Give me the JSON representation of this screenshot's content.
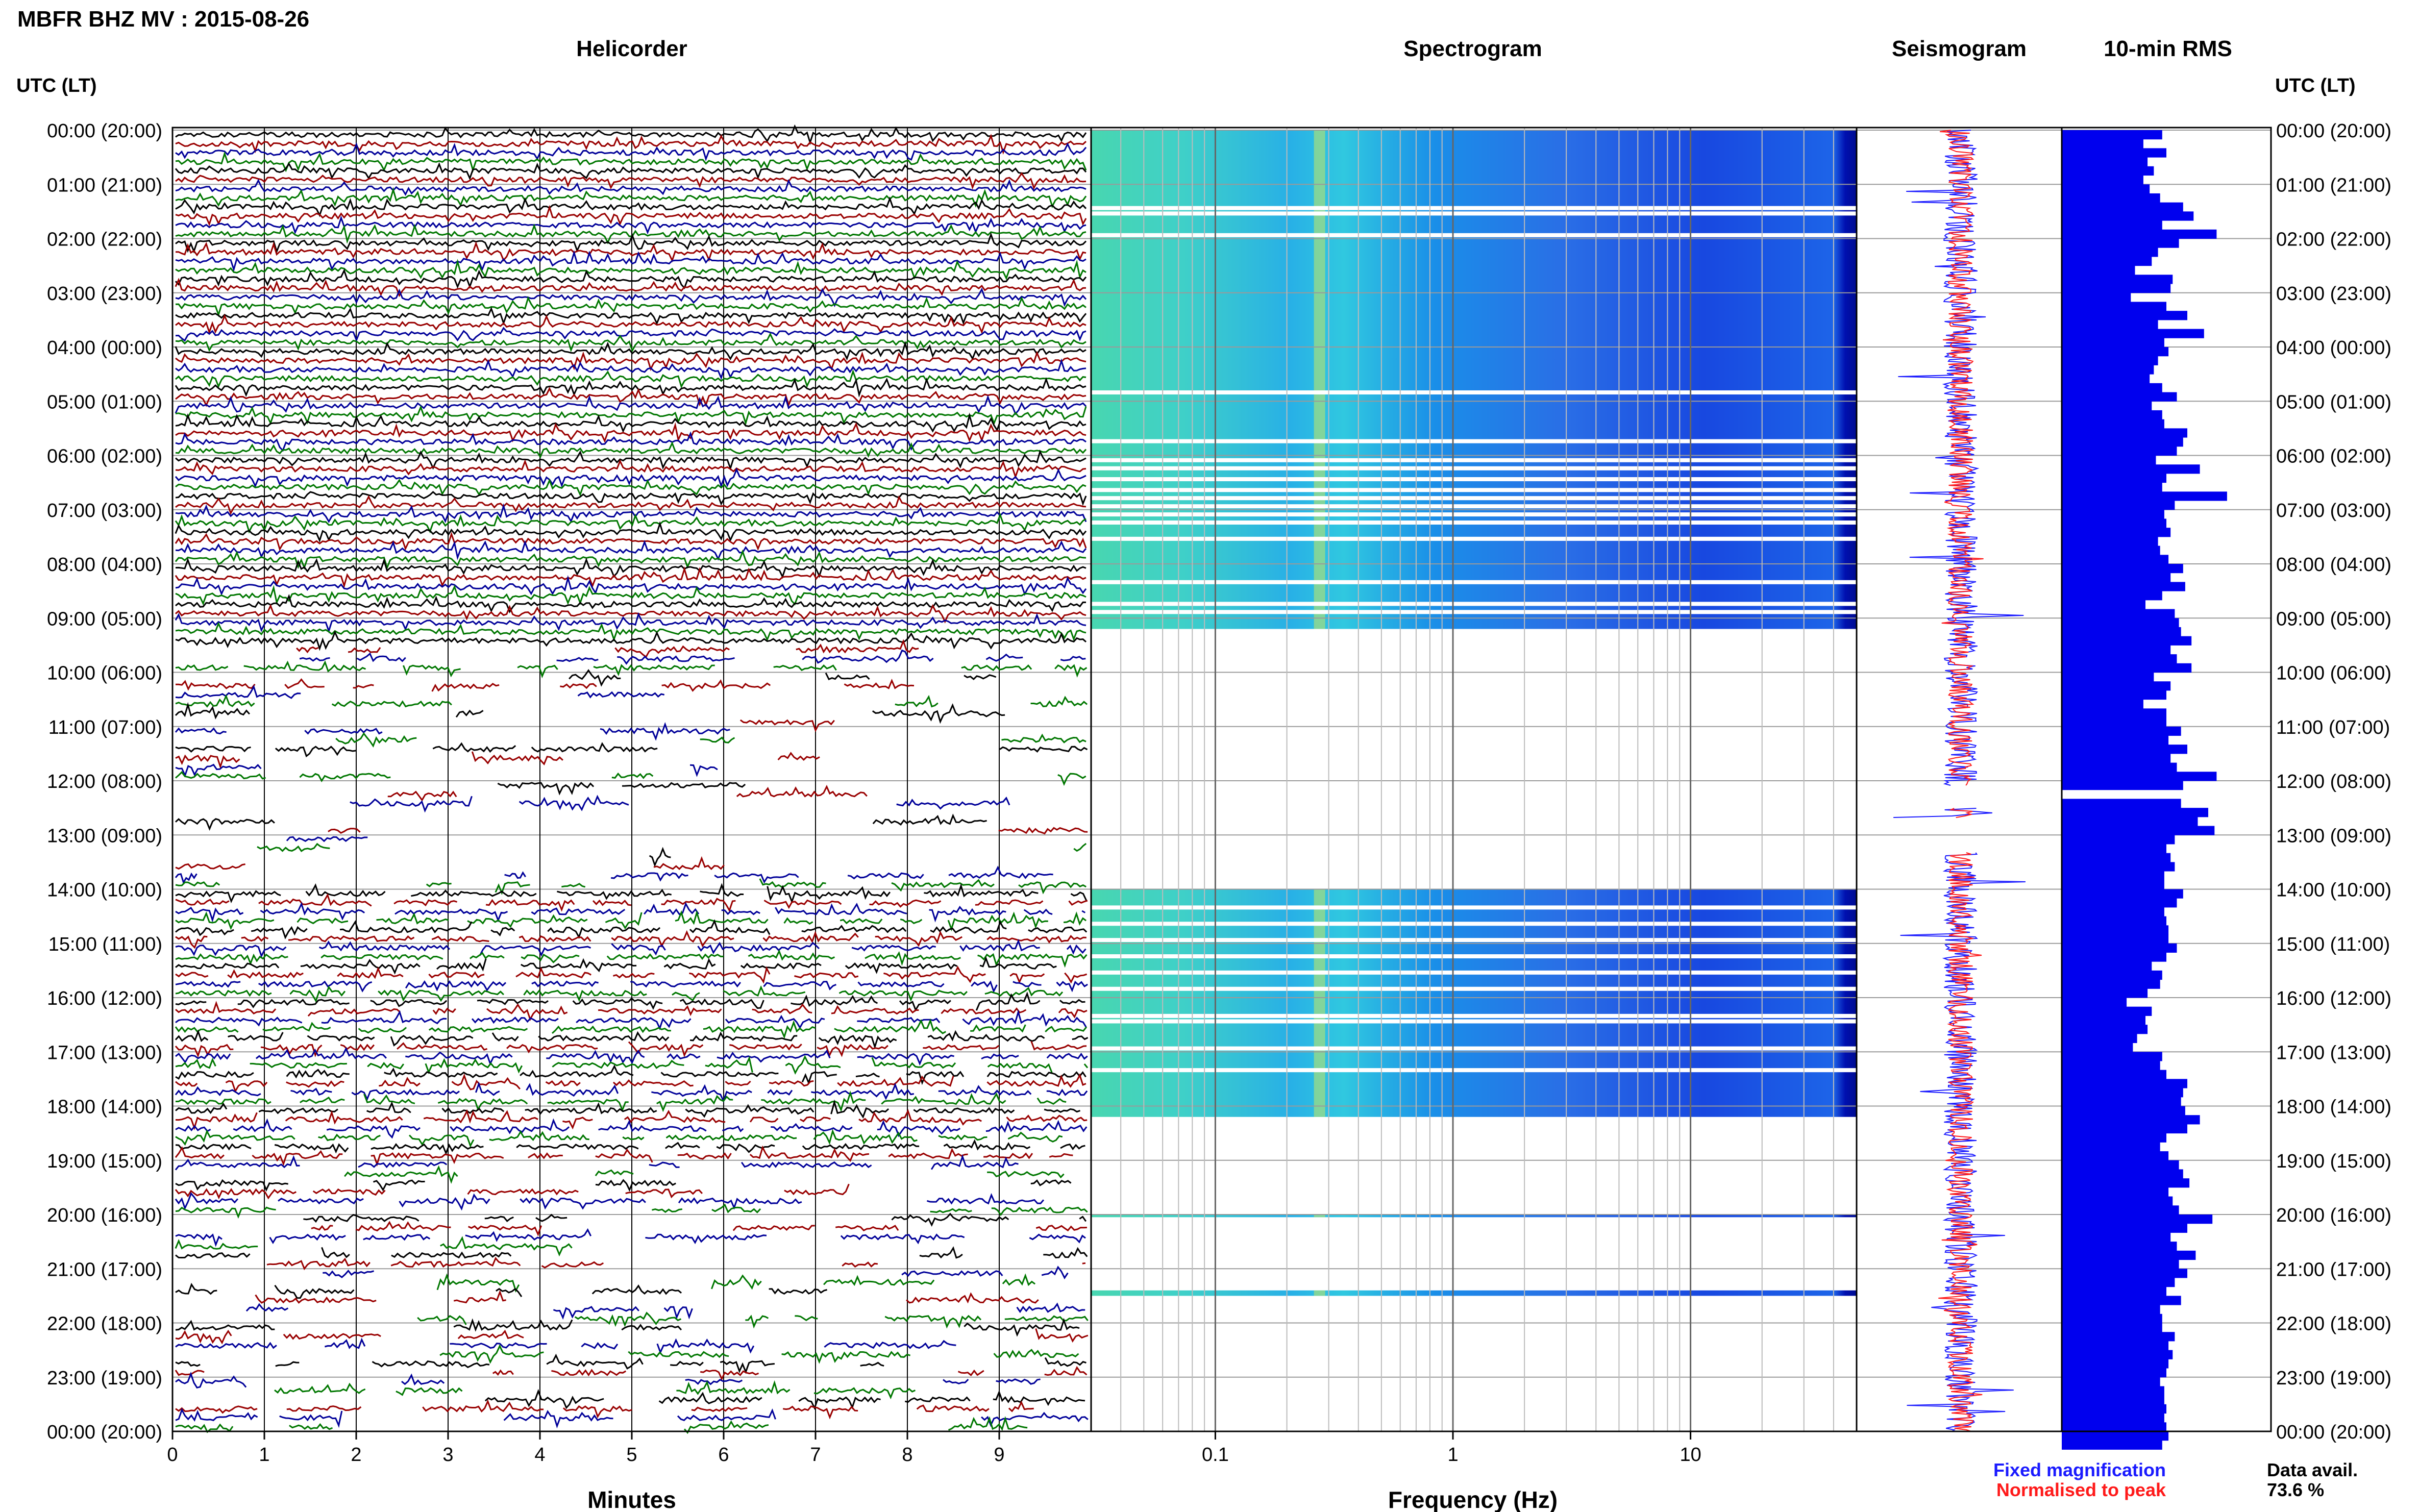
{
  "header": {
    "title": "MBFR BHZ MV : 2015-08-26"
  },
  "panels": {
    "helicorder": "Helicorder",
    "spectrogram": "Spectrogram",
    "seismogram": "Seismogram",
    "rms": "10-min RMS"
  },
  "axis_labels": {
    "left_heading": "UTC (LT)",
    "right_heading": "UTC (LT)",
    "minutes": "Minutes",
    "frequency": "Frequency (Hz)"
  },
  "legend": {
    "fixed": "Fixed magnification",
    "normalised": "Normalised to peak",
    "fixed_color": "#1a1aff",
    "normalised_color": "#ff1a1a"
  },
  "availability": {
    "label": "Data avail.",
    "value": "73.6 %"
  },
  "colors": {
    "trace_cycle": [
      "#000000",
      "#990000",
      "#000099",
      "#007700"
    ],
    "rms_bar": "#0000ee"
  },
  "chart_data": [
    {
      "type": "line",
      "panel": "Helicorder",
      "xlabel": "Minutes",
      "xlim": [
        0,
        10
      ],
      "xticks": [
        "0",
        "1",
        "2",
        "3",
        "4",
        "5",
        "6",
        "7",
        "8",
        "9"
      ],
      "rows_per_hour": 6,
      "hours": [
        "00:00 (20:00)",
        "01:00 (21:00)",
        "02:00 (22:00)",
        "03:00 (23:00)",
        "04:00 (00:00)",
        "05:00 (01:00)",
        "06:00 (02:00)",
        "07:00 (03:00)",
        "08:00 (04:00)",
        "09:00 (05:00)",
        "10:00 (06:00)",
        "11:00 (07:00)",
        "12:00 (08:00)",
        "13:00 (09:00)",
        "14:00 (10:00)",
        "15:00 (11:00)",
        "16:00 (12:00)",
        "17:00 (13:00)",
        "18:00 (14:00)",
        "19:00 (15:00)",
        "20:00 (16:00)",
        "21:00 (17:00)",
        "22:00 (18:00)",
        "23:00 (19:00)",
        "00:00 (20:00)"
      ]
    },
    {
      "type": "heatmap",
      "panel": "Spectrogram",
      "xlabel": "Frequency (Hz)",
      "xscale": "log",
      "xlim": [
        0.03,
        50
      ],
      "xticks": [
        "0.1",
        "1",
        "10"
      ],
      "data_present_hours": [
        [
          0,
          9.2
        ],
        [
          14.0,
          18.2
        ],
        [
          20.0,
          20.05
        ],
        [
          21.4,
          21.5
        ]
      ]
    },
    {
      "type": "bar",
      "panel": "10-min RMS",
      "interval_minutes": 10,
      "values": [
        0.48,
        0.39,
        0.5,
        0.41,
        0.44,
        0.39,
        0.42,
        0.47,
        0.58,
        0.63,
        0.48,
        0.74,
        0.56,
        0.46,
        0.43,
        0.35,
        0.53,
        0.52,
        0.33,
        0.5,
        0.6,
        0.46,
        0.68,
        0.49,
        0.51,
        0.46,
        0.44,
        0.42,
        0.48,
        0.55,
        0.43,
        0.48,
        0.49,
        0.6,
        0.58,
        0.55,
        0.45,
        0.66,
        0.5,
        0.48,
        0.79,
        0.54,
        0.49,
        0.5,
        0.52,
        0.46,
        0.47,
        0.51,
        0.58,
        0.52,
        0.59,
        0.48,
        0.4,
        0.54,
        0.56,
        0.57,
        0.62,
        0.52,
        0.55,
        0.62,
        0.44,
        0.52,
        0.5,
        0.39,
        0.5,
        0.5,
        0.57,
        0.51,
        0.6,
        0.52,
        0.55,
        0.74,
        0.58,
        0.0,
        0.57,
        0.7,
        0.65,
        0.73,
        0.54,
        0.5,
        0.52,
        0.54,
        0.49,
        0.49,
        0.58,
        0.55,
        0.49,
        0.5,
        0.51,
        0.51,
        0.55,
        0.5,
        0.43,
        0.48,
        0.47,
        0.41,
        0.31,
        0.43,
        0.4,
        0.41,
        0.36,
        0.34,
        0.48,
        0.47,
        0.5,
        0.6,
        0.58,
        0.57,
        0.59,
        0.66,
        0.6,
        0.5,
        0.47,
        0.51,
        0.56,
        0.58,
        0.61,
        0.51,
        0.53,
        0.56,
        0.72,
        0.6,
        0.52,
        0.55,
        0.64,
        0.56,
        0.6,
        0.54,
        0.5,
        0.57,
        0.47,
        0.48,
        0.48,
        0.54,
        0.51,
        0.53,
        0.51,
        0.5,
        0.47,
        0.49,
        0.49,
        0.5,
        0.49,
        0.5,
        0.51,
        0.48
      ]
    }
  ]
}
